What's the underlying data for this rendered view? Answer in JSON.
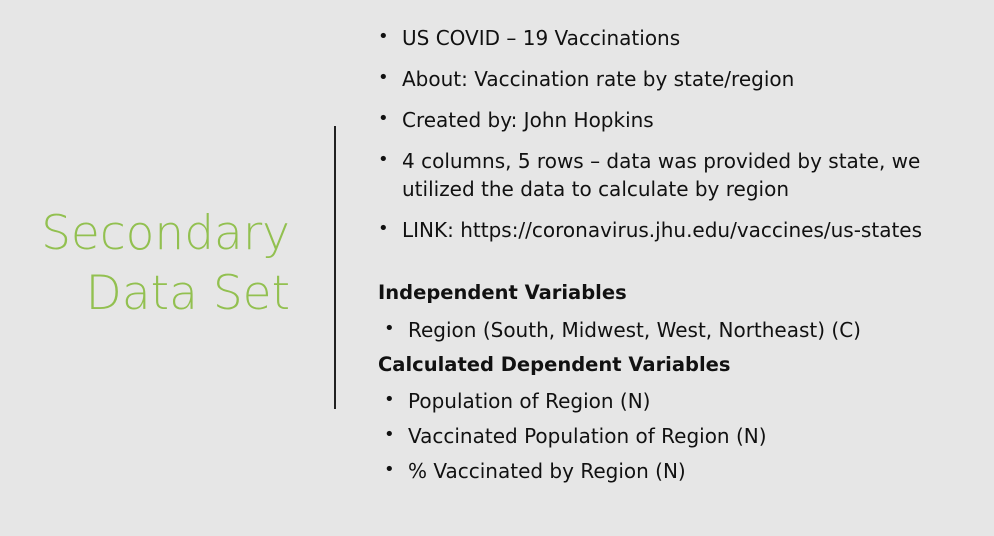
{
  "title": {
    "line1": "Secondary",
    "line2": "Data Set"
  },
  "bullets": [
    "US COVID – 19 Vaccinations",
    "About: Vaccination rate by state/region",
    "Created by: John Hopkins",
    "4 columns, 5 rows – data was provided by state, we utilized the data to calculate by region",
    "LINK: https://coronavirus.jhu.edu/vaccines/us-states"
  ],
  "independent": {
    "heading": "Independent Variables",
    "items": [
      "Region (South, Midwest, West, Northeast) (C)"
    ]
  },
  "dependent": {
    "heading": "Calculated Dependent Variables",
    "items": [
      "Population of Region (N)",
      "Vaccinated Population of Region (N)",
      "% Vaccinated by Region (N)"
    ]
  },
  "colors": {
    "background": "#e6e6e6",
    "title": "#92c050",
    "text": "#111111"
  }
}
